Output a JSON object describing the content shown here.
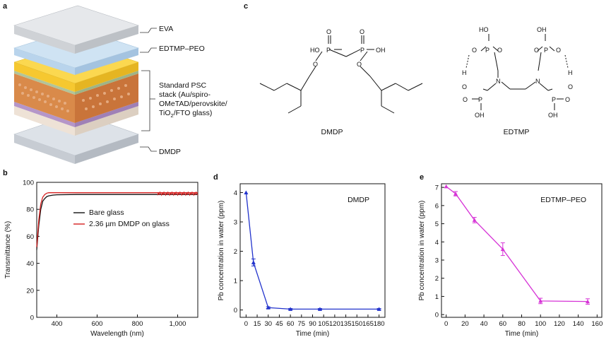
{
  "panels": {
    "a": {
      "letter": "a",
      "layers": {
        "eva": "EVA",
        "edtmp_peo": "EDTMP–PEO",
        "stack_line1": "Standard PSC",
        "stack_line2": "stack (Au/spiro-",
        "stack_line3": "OMeTAD/perovskite/",
        "stack_line4_a": "TiO",
        "stack_line4_sub": "2",
        "stack_line4_b": "/FTO glass)",
        "dmdp": "DMDP"
      },
      "colors": {
        "glass": "#d9dde3",
        "edtmp": "#bcd8ef",
        "gold": "#f6c830",
        "perovskite": "#d98a4a",
        "purple": "#b596c8",
        "base": "#e7dcd0"
      }
    },
    "c": {
      "letter": "c",
      "dmdp_name": "DMDP",
      "edtmp_name": "EDTMP",
      "atoms": {
        "P": "P",
        "O": "O",
        "OH": "OH",
        "HO": "HO",
        "H": "H",
        "N": "N"
      }
    }
  },
  "chart_data": [
    {
      "id": "b",
      "letter": "b",
      "type": "line",
      "xlabel": "Wavelength (nm)",
      "ylabel": "Transmittance (%)",
      "xlim": [
        300,
        1100
      ],
      "ylim": [
        0,
        100
      ],
      "xticks": [
        400,
        600,
        800,
        1000
      ],
      "xtick_labels": [
        "400",
        "600",
        "800",
        "1,000"
      ],
      "yticks": [
        0,
        20,
        40,
        60,
        80,
        100
      ],
      "legend_position": "center-right",
      "series": [
        {
          "name": "Bare glass",
          "color": "#111111",
          "x": [
            300,
            310,
            320,
            330,
            340,
            350,
            360,
            380,
            400,
            500,
            600,
            700,
            800,
            900,
            1000,
            1100
          ],
          "values": [
            50,
            68,
            80,
            86,
            88,
            89.5,
            90,
            90.5,
            90.8,
            91,
            91,
            91,
            91,
            91,
            91,
            91
          ]
        },
        {
          "name": "2.36 µm DMDP on glass",
          "color": "#d62020",
          "x": [
            300,
            310,
            320,
            330,
            340,
            350,
            360,
            380,
            400,
            500,
            600,
            700,
            800,
            900,
            1000,
            1100
          ],
          "values": [
            52,
            72,
            84,
            89,
            91,
            92,
            92.3,
            92.3,
            92.3,
            92.3,
            92.3,
            92.3,
            92.3,
            92.3,
            92.3,
            92.3
          ]
        }
      ]
    },
    {
      "id": "d",
      "letter": "d",
      "type": "line",
      "annotation": "DMDP",
      "xlabel": "Time (min)",
      "ylabel": "Pb concentration in water (ppm)",
      "xlim": [
        -8,
        188
      ],
      "ylim": [
        -0.25,
        4.3
      ],
      "xticks": [
        0,
        15,
        30,
        45,
        60,
        75,
        90,
        105,
        120,
        135,
        150,
        165,
        180
      ],
      "yticks": [
        0,
        1,
        2,
        3,
        4
      ],
      "series": [
        {
          "name": "DMDP",
          "color": "#2233cc",
          "x": [
            0,
            10,
            30,
            60,
            100,
            180
          ],
          "values": [
            4.0,
            1.62,
            0.08,
            0.03,
            0.03,
            0.03
          ],
          "errors": [
            0,
            0.12,
            0.03,
            0.02,
            0.02,
            0.02
          ]
        }
      ]
    },
    {
      "id": "e",
      "letter": "e",
      "type": "line",
      "annotation": "EDTMP–PEO",
      "xlabel": "Time (min)",
      "ylabel": "Pb concentration in water (ppm)",
      "xlim": [
        -5,
        165
      ],
      "ylim": [
        -0.15,
        7.2
      ],
      "xticks": [
        0,
        20,
        40,
        60,
        80,
        100,
        120,
        140,
        160
      ],
      "yticks": [
        0,
        1,
        2,
        3,
        4,
        5,
        6,
        7
      ],
      "series": [
        {
          "name": "EDTMP–PEO",
          "color": "#d633d6",
          "x": [
            0,
            10,
            30,
            60,
            100,
            150
          ],
          "values": [
            7.05,
            6.65,
            5.2,
            3.6,
            0.75,
            0.72
          ],
          "errors": [
            0,
            0.12,
            0.15,
            0.35,
            0.15,
            0.15
          ]
        }
      ]
    }
  ]
}
